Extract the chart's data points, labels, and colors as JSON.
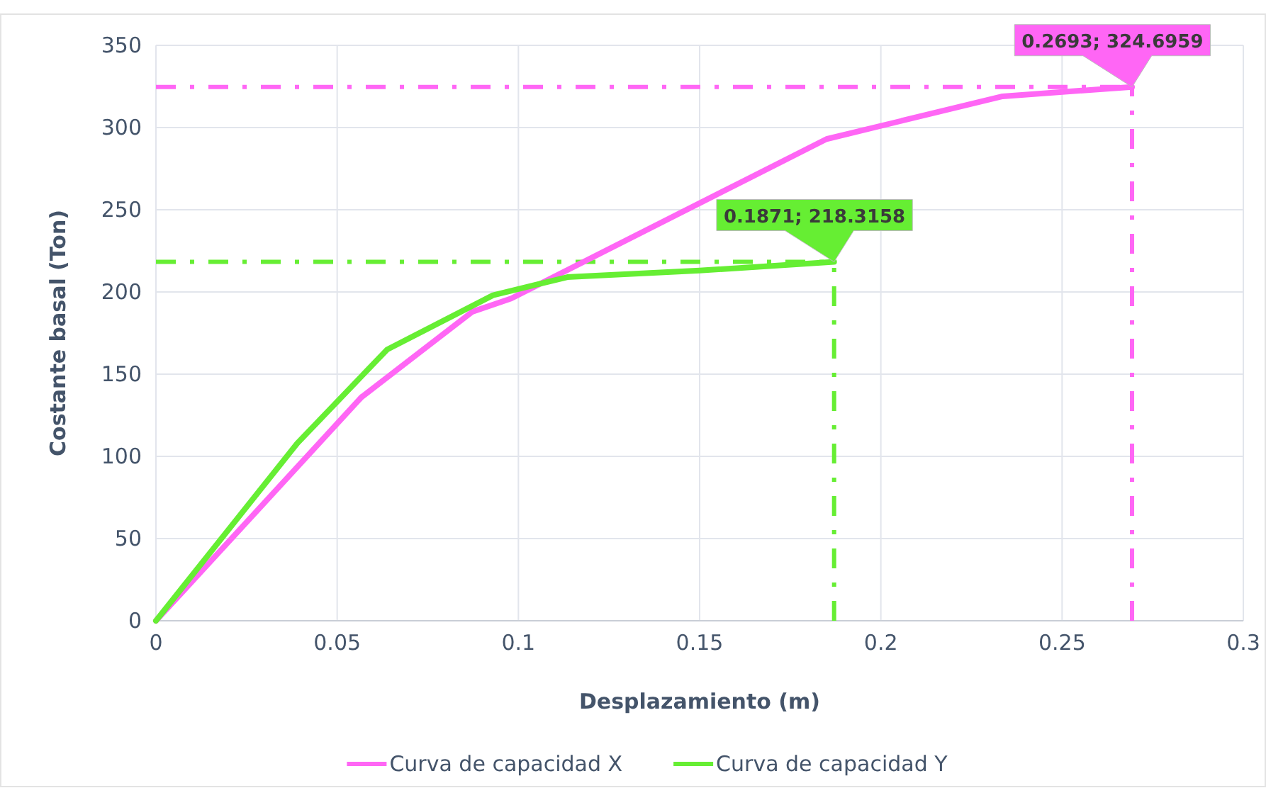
{
  "chart_data": {
    "type": "line",
    "xlabel": "Desplazamiento (m)",
    "ylabel": "Costante basal (Ton)",
    "xlim": [
      0,
      0.3
    ],
    "xticks": [
      0,
      0.05,
      0.1,
      0.15,
      0.2,
      0.25,
      0.3
    ],
    "ylim": [
      0,
      350
    ],
    "yticks": [
      0,
      50,
      100,
      150,
      200,
      250,
      300,
      350
    ],
    "grid": true,
    "legend": "bottom",
    "marker": "none",
    "line_style": "solid",
    "series": [
      {
        "name": "Curva de capacidad X",
        "color": "#ff66f5",
        "x": [
          0,
          0.0567,
          0.0873,
          0.098,
          0.185,
          0.2336,
          0.2693
        ],
        "values": [
          0,
          136,
          188,
          196,
          293,
          319,
          324.6959
        ]
      },
      {
        "name": "Curva de capacidad Y",
        "color": "#66ee33",
        "x": [
          0,
          0.039,
          0.0638,
          0.093,
          0.1135,
          0.15,
          0.1871
        ],
        "values": [
          0,
          108,
          165,
          198,
          209,
          213,
          218.3158
        ]
      }
    ],
    "ref_lines": [
      {
        "axis": "y",
        "value": 324.6959,
        "color": "#ff66f5"
      },
      {
        "axis": "x",
        "value": 0.2693,
        "color": "#ff66f5"
      },
      {
        "axis": "y",
        "value": 218.3158,
        "color": "#66ee33"
      },
      {
        "axis": "x",
        "value": 0.1871,
        "color": "#66ee33"
      }
    ],
    "annotations": [
      {
        "text": "0.2693; 324.6959",
        "x": 0.2693,
        "y": 324.6959
      },
      {
        "text": "0.1871; 218.3158",
        "x": 0.1871,
        "y": 218.3158
      }
    ]
  }
}
